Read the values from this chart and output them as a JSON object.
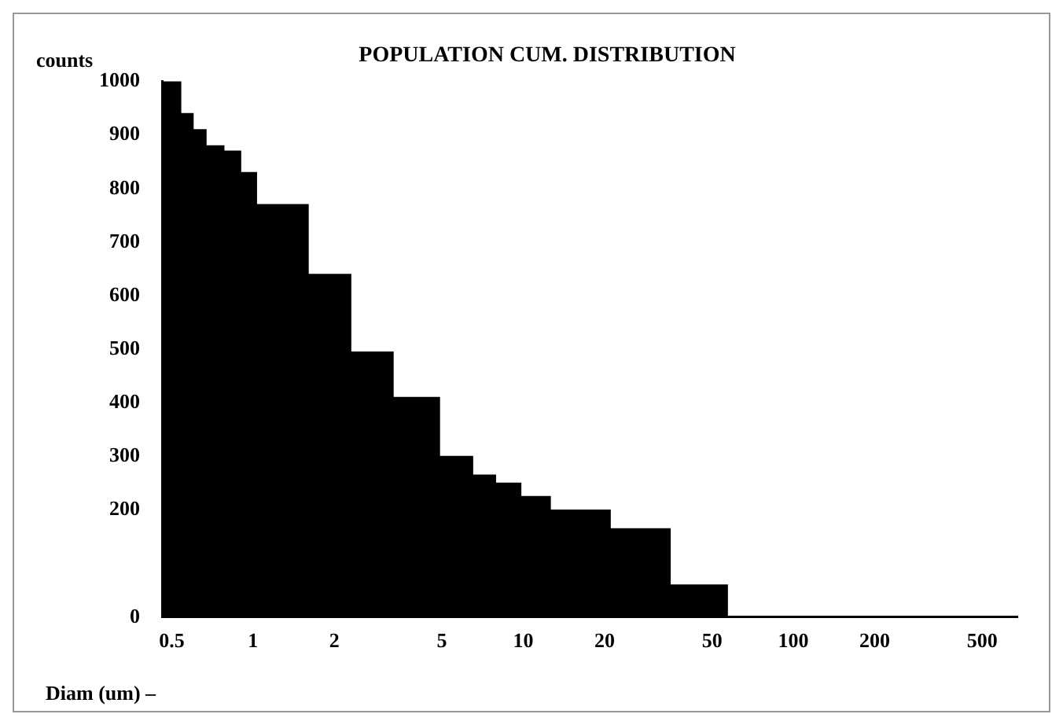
{
  "chart_data": {
    "type": "histogram",
    "title": "POPULATION CUM. DISTRIBUTION",
    "xlabel": "Diam (um) –",
    "ylabel": "counts",
    "bins": [
      0.46,
      0.54,
      0.6,
      0.67,
      0.78,
      0.9,
      1.03,
      1.6,
      2.3,
      3.3,
      4.9,
      6.5,
      7.9,
      9.8,
      12.6,
      21,
      35,
      57
    ],
    "values": [
      1000,
      940,
      910,
      880,
      870,
      830,
      770,
      640,
      495,
      410,
      300,
      265,
      250,
      225,
      200,
      165,
      60
    ],
    "color": "#000000",
    "log": "x",
    "xlim": [
      0.46,
      675
    ],
    "xticks": [
      0.5,
      1,
      2,
      5,
      10,
      20,
      50,
      100,
      200,
      500
    ],
    "ylim": [
      0,
      1000
    ],
    "yticks": [
      0,
      200,
      300,
      400,
      500,
      600,
      700,
      800,
      900,
      1000
    ],
    "grid": false,
    "legend": false
  }
}
